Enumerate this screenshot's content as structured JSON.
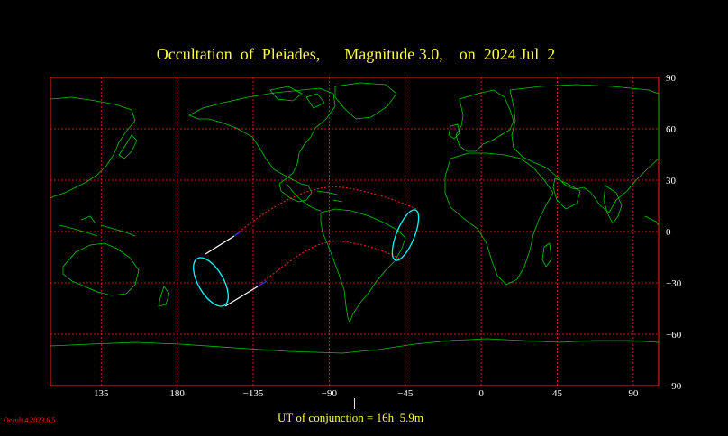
{
  "title": "Occultation  of  Pleiades,      Magnitude 3.0,    on  2024 Jul  2",
  "ut_label": "UT of conjunction = 16h  5.9m",
  "version": "Occult 4.2023.6.5",
  "colors": {
    "title": "#ffff40",
    "grid": "#ff2020",
    "coast": "#00c800",
    "ellipse": "#00ffff",
    "path": "#ff2020",
    "limb": "#ffffff",
    "limb_blue": "#3030ff"
  },
  "map": {
    "x_ticks": [
      {
        "lon": 135,
        "label": "135"
      },
      {
        "lon": 180,
        "label": "180"
      },
      {
        "lon": 225,
        "label": "−135"
      },
      {
        "lon": 270,
        "label": "−90"
      },
      {
        "lon": 315,
        "label": "−45"
      },
      {
        "lon": 360,
        "label": "0"
      },
      {
        "lon": 405,
        "label": "45"
      },
      {
        "lon": 450,
        "label": "90"
      }
    ],
    "y_ticks": [
      {
        "lat": 90,
        "label": "90"
      },
      {
        "lat": 60,
        "label": "60"
      },
      {
        "lat": 30,
        "label": "30"
      },
      {
        "lat": 0,
        "label": "0"
      },
      {
        "lat": -30,
        "label": "−30"
      },
      {
        "lat": -60,
        "label": "−60"
      },
      {
        "lat": -90,
        "label": "−90"
      }
    ],
    "lon_range": [
      105,
      465
    ],
    "lat_range": [
      -90,
      90
    ]
  }
}
